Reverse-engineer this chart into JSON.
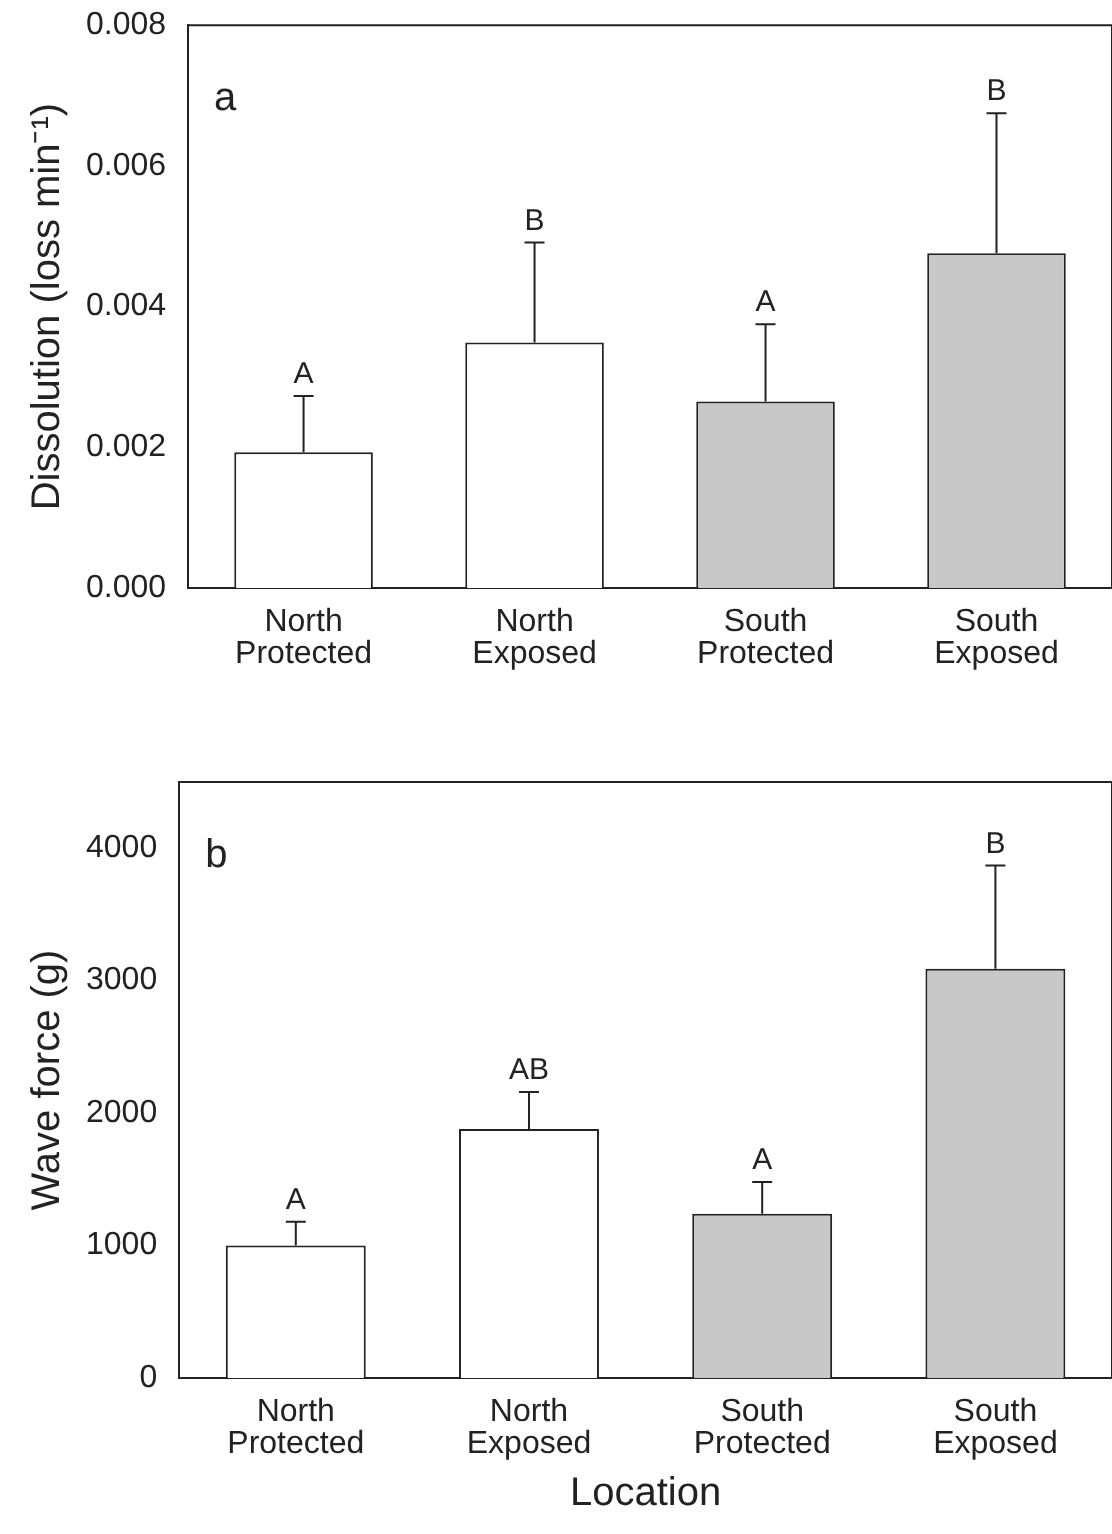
{
  "chart_data": [
    {
      "type": "bar",
      "ylabel": "Dissolution (loss min⁻¹)",
      "categories": [
        "North Protected",
        "North Exposed",
        "South Protected",
        "South Exposed"
      ],
      "values": [
        0.00193,
        0.00349,
        0.00265,
        0.00476
      ],
      "errors": [
        [
          0.00193,
          0.00273
        ],
        [
          0.00349,
          0.00491
        ],
        [
          0.00265,
          0.00375
        ],
        [
          0.00476,
          0.00675
        ]
      ],
      "colors": [
        "#ffffff",
        "#ffffff",
        "#c8c8c8",
        "#c8c8c8"
      ],
      "ylim": [
        0,
        0.008
      ],
      "yticks": [
        {
          "value": 0,
          "label": "0.000"
        },
        {
          "value": 0.002,
          "label": "0.002"
        },
        {
          "value": 0.004,
          "label": "0.004"
        },
        {
          "value": 0.006,
          "label": "0.006"
        },
        {
          "value": 0.008,
          "label": "0.008"
        }
      ],
      "grid": false,
      "legend": false,
      "annotations": [
        "a",
        {
          "text": "A",
          "x": "North Protected",
          "y": 0.00273
        },
        {
          "text": "B",
          "x": "North Exposed",
          "y": 0.00491
        },
        {
          "text": "A",
          "x": "South Protected",
          "y": 0.00375
        },
        {
          "text": "B",
          "x": "South Exposed",
          "y": 0.00675
        }
      ]
    },
    {
      "type": "bar",
      "xlabel": "Location",
      "ylabel": "Wave force (g)",
      "categories": [
        "North Protected",
        "North Exposed",
        "South Protected",
        "South Exposed"
      ],
      "values": [
        1000,
        1880,
        1240,
        3090
      ],
      "errors": [
        [
          1000,
          1180
        ],
        [
          1880,
          2160
        ],
        [
          1240,
          1480
        ],
        [
          3090,
          3870
        ]
      ],
      "colors": [
        "#ffffff",
        "#ffffff",
        "#c8c8c8",
        "#c8c8c8"
      ],
      "ylim": [
        0,
        4500
      ],
      "yticks": [
        0,
        1000,
        2000,
        3000,
        4000
      ],
      "grid": false,
      "legend": false,
      "annotations": [
        "b",
        {
          "text": "A",
          "x": "North Protected",
          "y": 1180
        },
        {
          "text": "AB",
          "x": "North Exposed",
          "y": 2160
        },
        {
          "text": "A",
          "x": "South Protected",
          "y": 1480
        },
        {
          "text": "B",
          "x": "South Exposed",
          "y": 3870
        }
      ]
    }
  ]
}
